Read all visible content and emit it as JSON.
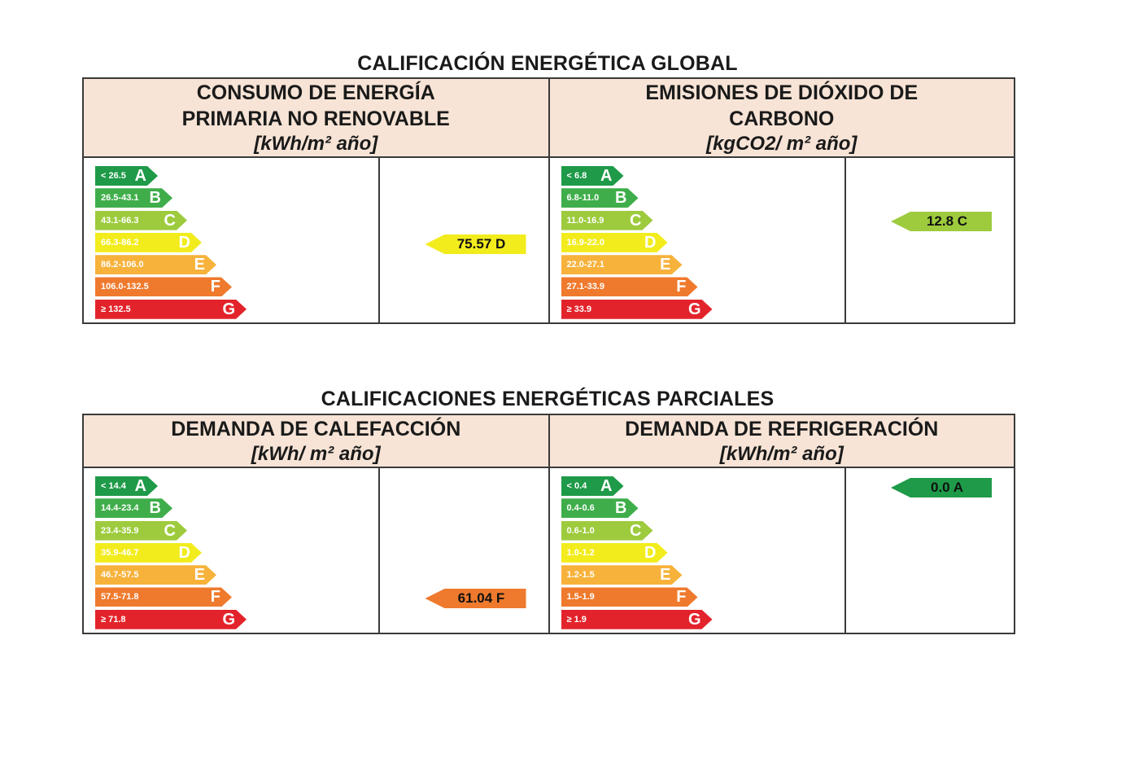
{
  "colors": {
    "A": "#1e9a48",
    "B": "#3fae4a",
    "C": "#9dcb3d",
    "D": "#f2ec1d",
    "E": "#f7b23b",
    "F": "#ef7a2d",
    "G": "#e3232b",
    "header_bg": "#f7e4d6"
  },
  "global": {
    "title": "CALIFICACIÓN ENERGÉTICA GLOBAL",
    "consumo": {
      "heading_line1": "CONSUMO DE ENERGÍA",
      "heading_line2": "PRIMARIA NO RENOVABLE",
      "unit": "[kWh/m² año]",
      "scale": [
        {
          "range": "< 26.5",
          "letter": "A"
        },
        {
          "range": "26.5-43.1",
          "letter": "B"
        },
        {
          "range": "43.1-66.3",
          "letter": "C"
        },
        {
          "range": "66.3-86.2",
          "letter": "D"
        },
        {
          "range": "86.2-106.0",
          "letter": "E"
        },
        {
          "range": "106.0-132.5",
          "letter": "F"
        },
        {
          "range": "≥ 132.5",
          "letter": "G"
        }
      ],
      "rating": {
        "label": "75.57 D",
        "letter": "D"
      }
    },
    "emisiones": {
      "heading_line1": "EMISIONES DE DIÓXIDO DE",
      "heading_line2": "CARBONO",
      "unit": "[kgCO2/ m² año]",
      "scale": [
        {
          "range": "< 6.8",
          "letter": "A"
        },
        {
          "range": "6.8-11.0",
          "letter": "B"
        },
        {
          "range": "11.0-16.9",
          "letter": "C"
        },
        {
          "range": "16.9-22.0",
          "letter": "D"
        },
        {
          "range": "22.0-27.1",
          "letter": "E"
        },
        {
          "range": "27.1-33.9",
          "letter": "F"
        },
        {
          "range": "≥ 33.9",
          "letter": "G"
        }
      ],
      "rating": {
        "label": "12.8 C",
        "letter": "C"
      }
    }
  },
  "partial": {
    "title": "CALIFICACIONES ENERGÉTICAS PARCIALES",
    "calefaccion": {
      "heading_line1": "DEMANDA DE CALEFACCIÓN",
      "unit": "[kWh/ m² año]",
      "scale": [
        {
          "range": "< 14.4",
          "letter": "A"
        },
        {
          "range": "14.4-23.4",
          "letter": "B"
        },
        {
          "range": "23.4-35.9",
          "letter": "C"
        },
        {
          "range": "35.9-46.7",
          "letter": "D"
        },
        {
          "range": "46.7-57.5",
          "letter": "E"
        },
        {
          "range": "57.5-71.8",
          "letter": "F"
        },
        {
          "range": "≥ 71.8",
          "letter": "G"
        }
      ],
      "rating": {
        "label": "61.04 F",
        "letter": "F"
      }
    },
    "refrigeracion": {
      "heading_line1": "DEMANDA DE REFRIGERACIÓN",
      "unit": "[kWh/m² año]",
      "scale": [
        {
          "range": "< 0.4",
          "letter": "A"
        },
        {
          "range": "0.4-0.6",
          "letter": "B"
        },
        {
          "range": "0.6-1.0",
          "letter": "C"
        },
        {
          "range": "1.0-1.2",
          "letter": "D"
        },
        {
          "range": "1.2-1.5",
          "letter": "E"
        },
        {
          "range": "1.5-1.9",
          "letter": "F"
        },
        {
          "range": "≥ 1.9",
          "letter": "G"
        }
      ],
      "rating": {
        "label": "0.0 A",
        "letter": "A"
      }
    }
  }
}
